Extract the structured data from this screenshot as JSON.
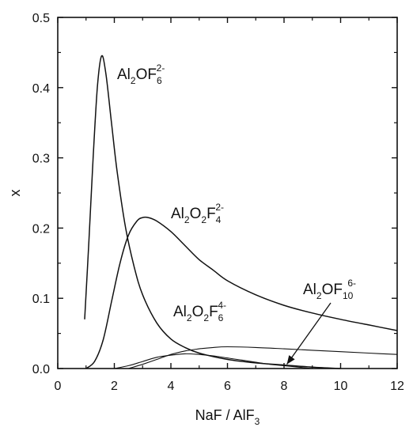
{
  "chart_data": {
    "type": "line",
    "title": "",
    "xlabel": {
      "base": "NaF / AlF",
      "sub": "3"
    },
    "ylabel": "x",
    "xlim": [
      0,
      12
    ],
    "ylim": [
      0,
      0.5
    ],
    "xticks": [
      "0",
      "2",
      "4",
      "6",
      "8",
      "10",
      "12"
    ],
    "yticks": [
      "0.0",
      "0.1",
      "0.2",
      "0.3",
      "0.4",
      "0.5"
    ],
    "grid": false,
    "legend": "none",
    "line_color": "#111111",
    "series": [
      {
        "label_parts": [
          [
            "Al",
            ""
          ],
          [
            "2",
            "sub"
          ],
          [
            "OF",
            ""
          ],
          [
            "6",
            "sub"
          ],
          [
            "2-",
            "sup"
          ]
        ],
        "x": [
          0.95,
          1.1,
          1.25,
          1.4,
          1.55,
          1.7,
          1.9,
          2.1,
          2.4,
          2.7,
          3.0,
          3.5,
          4.0,
          4.5,
          5.0,
          6.0,
          7.0,
          8.0,
          9.0,
          10.0
        ],
        "values": [
          0.07,
          0.18,
          0.3,
          0.4,
          0.445,
          0.42,
          0.35,
          0.28,
          0.2,
          0.145,
          0.105,
          0.065,
          0.042,
          0.03,
          0.022,
          0.013,
          0.008,
          0.005,
          0.002,
          0.0
        ]
      },
      {
        "label_parts": [
          [
            "Al",
            ""
          ],
          [
            "2",
            "sub"
          ],
          [
            "O",
            ""
          ],
          [
            "2",
            "sub"
          ],
          [
            "F",
            ""
          ],
          [
            "4",
            "sub"
          ],
          [
            "2-",
            "sup"
          ]
        ],
        "x": [
          1.0,
          1.3,
          1.6,
          1.9,
          2.2,
          2.5,
          2.8,
          3.0,
          3.2,
          3.5,
          4.0,
          4.5,
          5.0,
          5.5,
          6.0,
          7.0,
          8.0,
          9.0,
          10.0,
          11.0,
          12.0
        ],
        "values": [
          0.0,
          0.01,
          0.04,
          0.095,
          0.15,
          0.19,
          0.21,
          0.215,
          0.215,
          0.21,
          0.195,
          0.175,
          0.155,
          0.14,
          0.125,
          0.105,
          0.09,
          0.079,
          0.07,
          0.062,
          0.054
        ]
      },
      {
        "label_parts": [
          [
            "Al",
            ""
          ],
          [
            "2",
            "sub"
          ],
          [
            "O",
            ""
          ],
          [
            "2",
            "sub"
          ],
          [
            "F",
            ""
          ],
          [
            "6",
            "sub"
          ],
          [
            "4-",
            "sup"
          ]
        ],
        "x": [
          2.0,
          2.5,
          3.0,
          3.5,
          4.0,
          4.5,
          5.0,
          5.5,
          6.0,
          6.5,
          7.0,
          7.5,
          8.0,
          8.5,
          9.0
        ],
        "values": [
          0.0,
          0.004,
          0.01,
          0.016,
          0.019,
          0.021,
          0.02,
          0.018,
          0.015,
          0.012,
          0.009,
          0.006,
          0.004,
          0.002,
          0.0
        ]
      },
      {
        "label_parts": [
          [
            "Al",
            ""
          ],
          [
            "2",
            "sub"
          ],
          [
            "OF",
            ""
          ],
          [
            "10",
            "sub"
          ],
          [
            "6-",
            "sup"
          ]
        ],
        "x": [
          2.5,
          3.0,
          3.5,
          4.0,
          4.5,
          5.0,
          5.5,
          6.0,
          7.0,
          8.0,
          9.0,
          10.0,
          11.0,
          12.0
        ],
        "values": [
          0.0,
          0.006,
          0.013,
          0.02,
          0.025,
          0.028,
          0.03,
          0.031,
          0.03,
          0.028,
          0.026,
          0.024,
          0.022,
          0.02
        ]
      }
    ]
  }
}
